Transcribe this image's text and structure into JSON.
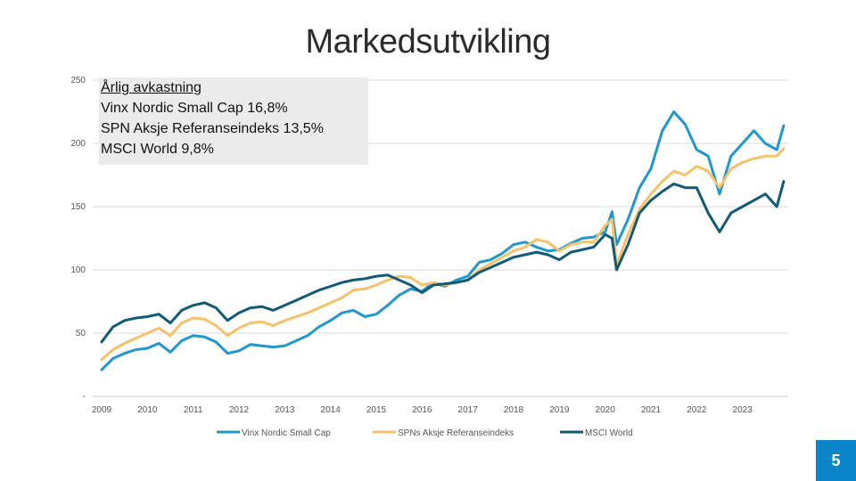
{
  "slide": {
    "title": "Markedsutvikling",
    "page_number": "5"
  },
  "annotation": {
    "title": "Årlig avkastning",
    "lines": [
      "Vinx Nordic Small Cap 16,8%",
      "SPN Aksje Referanseindeks 13,5%",
      "MSCI World 9,8%"
    ]
  },
  "colors": {
    "vinx": "#1f97cf",
    "spn": "#f7c16a",
    "msci": "#115a78",
    "grid": "#d9d9d9",
    "page_badge": "#0a85c9"
  },
  "chart_data": {
    "type": "line",
    "title": "",
    "xlabel": "",
    "ylabel": "",
    "x_range": [
      2009,
      2024
    ],
    "ylim": [
      0,
      250
    ],
    "y_ticks": [
      0,
      50,
      100,
      150,
      200,
      250
    ],
    "y_tick_labels": [
      "-",
      "50",
      "100",
      "150",
      "200",
      "250"
    ],
    "x_ticks": [
      2009,
      2010,
      2011,
      2012,
      2013,
      2014,
      2015,
      2016,
      2017,
      2018,
      2019,
      2020,
      2021,
      2022,
      2023
    ],
    "x_tick_labels": [
      "2009",
      "2010",
      "2011",
      "2012",
      "2013",
      "2014",
      "2015",
      "2016",
      "2017",
      "2018",
      "2019",
      "2020",
      "2021",
      "2022",
      "2023"
    ],
    "grid": true,
    "legend": "bottom",
    "series": [
      {
        "name": "Vinx Nordic Small Cap",
        "color": "#1f97cf",
        "x": [
          2009.0,
          2009.25,
          2009.5,
          2009.75,
          2010.0,
          2010.25,
          2010.5,
          2010.75,
          2011.0,
          2011.25,
          2011.5,
          2011.75,
          2012.0,
          2012.25,
          2012.5,
          2012.75,
          2013.0,
          2013.25,
          2013.5,
          2013.75,
          2014.0,
          2014.25,
          2014.5,
          2014.75,
          2015.0,
          2015.25,
          2015.5,
          2015.75,
          2016.0,
          2016.25,
          2016.5,
          2016.75,
          2017.0,
          2017.25,
          2017.5,
          2017.75,
          2018.0,
          2018.25,
          2018.5,
          2018.75,
          2019.0,
          2019.25,
          2019.5,
          2019.75,
          2020.0,
          2020.15,
          2020.25,
          2020.5,
          2020.75,
          2021.0,
          2021.25,
          2021.5,
          2021.75,
          2022.0,
          2022.25,
          2022.5,
          2022.75,
          2023.0,
          2023.25,
          2023.5,
          2023.75,
          2023.9
        ],
        "y": [
          21,
          30,
          34,
          37,
          38,
          42,
          35,
          44,
          48,
          47,
          43,
          34,
          36,
          41,
          40,
          39,
          40,
          44,
          48,
          55,
          60,
          66,
          68,
          63,
          65,
          72,
          80,
          85,
          83,
          90,
          87,
          92,
          95,
          106,
          108,
          113,
          120,
          122,
          118,
          115,
          116,
          121,
          125,
          126,
          130,
          146,
          120,
          140,
          165,
          180,
          210,
          225,
          215,
          195,
          190,
          160,
          190,
          200,
          210,
          200,
          195,
          214
        ]
      },
      {
        "name": "SPNs Aksje Referanseindeks",
        "color": "#f7c16a",
        "x": [
          2009.0,
          2009.25,
          2009.5,
          2009.75,
          2010.0,
          2010.25,
          2010.5,
          2010.75,
          2011.0,
          2011.25,
          2011.5,
          2011.75,
          2012.0,
          2012.25,
          2012.5,
          2012.75,
          2013.0,
          2013.25,
          2013.5,
          2013.75,
          2014.0,
          2014.25,
          2014.5,
          2014.75,
          2015.0,
          2015.25,
          2015.5,
          2015.75,
          2016.0,
          2016.25,
          2016.5,
          2016.75,
          2017.0,
          2017.25,
          2017.5,
          2017.75,
          2018.0,
          2018.25,
          2018.5,
          2018.75,
          2019.0,
          2019.25,
          2019.5,
          2019.75,
          2020.0,
          2020.15,
          2020.25,
          2020.5,
          2020.75,
          2021.0,
          2021.25,
          2021.5,
          2021.75,
          2022.0,
          2022.25,
          2022.5,
          2022.75,
          2023.0,
          2023.25,
          2023.5,
          2023.75,
          2023.9
        ],
        "y": [
          29,
          37,
          42,
          46,
          50,
          54,
          48,
          58,
          62,
          61,
          56,
          48,
          54,
          58,
          59,
          56,
          60,
          63,
          66,
          70,
          74,
          78,
          84,
          85,
          88,
          92,
          95,
          94,
          88,
          90,
          88,
          90,
          92,
          100,
          105,
          110,
          115,
          118,
          124,
          122,
          115,
          120,
          122,
          122,
          135,
          140,
          104,
          128,
          148,
          160,
          170,
          178,
          175,
          182,
          178,
          165,
          180,
          185,
          188,
          190,
          190,
          196
        ]
      },
      {
        "name": "MSCI World",
        "color": "#115a78",
        "x": [
          2009.0,
          2009.25,
          2009.5,
          2009.75,
          2010.0,
          2010.25,
          2010.5,
          2010.75,
          2011.0,
          2011.25,
          2011.5,
          2011.75,
          2012.0,
          2012.25,
          2012.5,
          2012.75,
          2013.0,
          2013.25,
          2013.5,
          2013.75,
          2014.0,
          2014.25,
          2014.5,
          2014.75,
          2015.0,
          2015.25,
          2015.5,
          2015.75,
          2016.0,
          2016.25,
          2016.5,
          2016.75,
          2017.0,
          2017.25,
          2017.5,
          2017.75,
          2018.0,
          2018.25,
          2018.5,
          2018.75,
          2019.0,
          2019.25,
          2019.5,
          2019.75,
          2020.0,
          2020.15,
          2020.25,
          2020.5,
          2020.75,
          2021.0,
          2021.25,
          2021.5,
          2021.75,
          2022.0,
          2022.25,
          2022.5,
          2022.75,
          2023.0,
          2023.25,
          2023.5,
          2023.75,
          2023.9
        ],
        "y": [
          43,
          55,
          60,
          62,
          63,
          65,
          58,
          68,
          72,
          74,
          70,
          60,
          66,
          70,
          71,
          68,
          72,
          76,
          80,
          84,
          87,
          90,
          92,
          93,
          95,
          96,
          92,
          88,
          82,
          88,
          89,
          90,
          92,
          98,
          102,
          106,
          110,
          112,
          114,
          112,
          108,
          114,
          116,
          118,
          128,
          125,
          100,
          120,
          145,
          155,
          162,
          168,
          165,
          165,
          145,
          130,
          145,
          150,
          155,
          160,
          150,
          170
        ]
      }
    ]
  }
}
